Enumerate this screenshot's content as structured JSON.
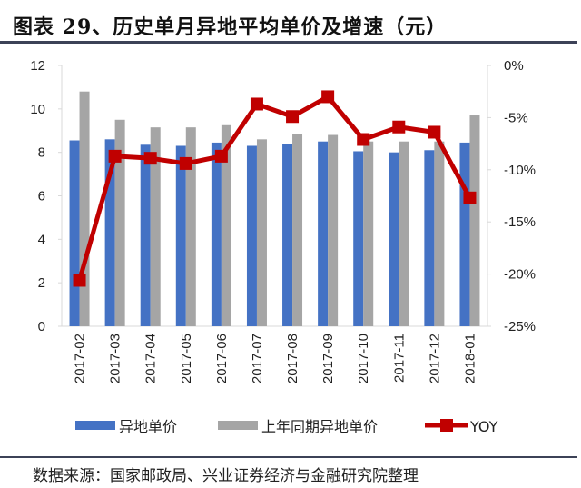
{
  "title": "图表 29、历史单月异地平均单价及增速（元）",
  "source": "数据来源：国家邮政局、兴业证券经济与金融研究院整理",
  "chart_data": {
    "type": "bar",
    "title": "图表 29、历史单月异地平均单价及增速（元）",
    "categories": [
      "2017-02",
      "2017-03",
      "2017-04",
      "2017-05",
      "2017-06",
      "2017-07",
      "2017-08",
      "2017-09",
      "2017-10",
      "2017-11",
      "2017-12",
      "2018-01"
    ],
    "series": [
      {
        "name": "异地单价",
        "type": "bar",
        "axis": "left",
        "color": "#4472c4",
        "values": [
          8.55,
          8.6,
          8.35,
          8.3,
          8.45,
          8.3,
          8.4,
          8.5,
          8.05,
          8.0,
          8.1,
          8.45
        ]
      },
      {
        "name": "上年同期异地单价",
        "type": "bar",
        "axis": "left",
        "color": "#a5a5a5",
        "values": [
          10.8,
          9.5,
          9.15,
          9.15,
          9.25,
          8.6,
          8.85,
          8.8,
          8.5,
          8.5,
          8.5,
          9.7
        ]
      },
      {
        "name": "YOY",
        "type": "line",
        "axis": "right",
        "color": "#c00000",
        "values": [
          -20.6,
          -8.7,
          -8.9,
          -9.4,
          -8.7,
          -3.7,
          -4.9,
          -3.0,
          -7.1,
          -5.9,
          -6.4,
          -12.7
        ]
      }
    ],
    "ylim": [
      0,
      12
    ],
    "yticks": [
      "0",
      "2",
      "4",
      "6",
      "8",
      "10",
      "12"
    ],
    "y2lim": [
      -25,
      0
    ],
    "y2ticks": [
      "-25%",
      "-20%",
      "-15%",
      "-10%",
      "-5%",
      "0%"
    ],
    "grid": false,
    "legend": "bottom"
  }
}
